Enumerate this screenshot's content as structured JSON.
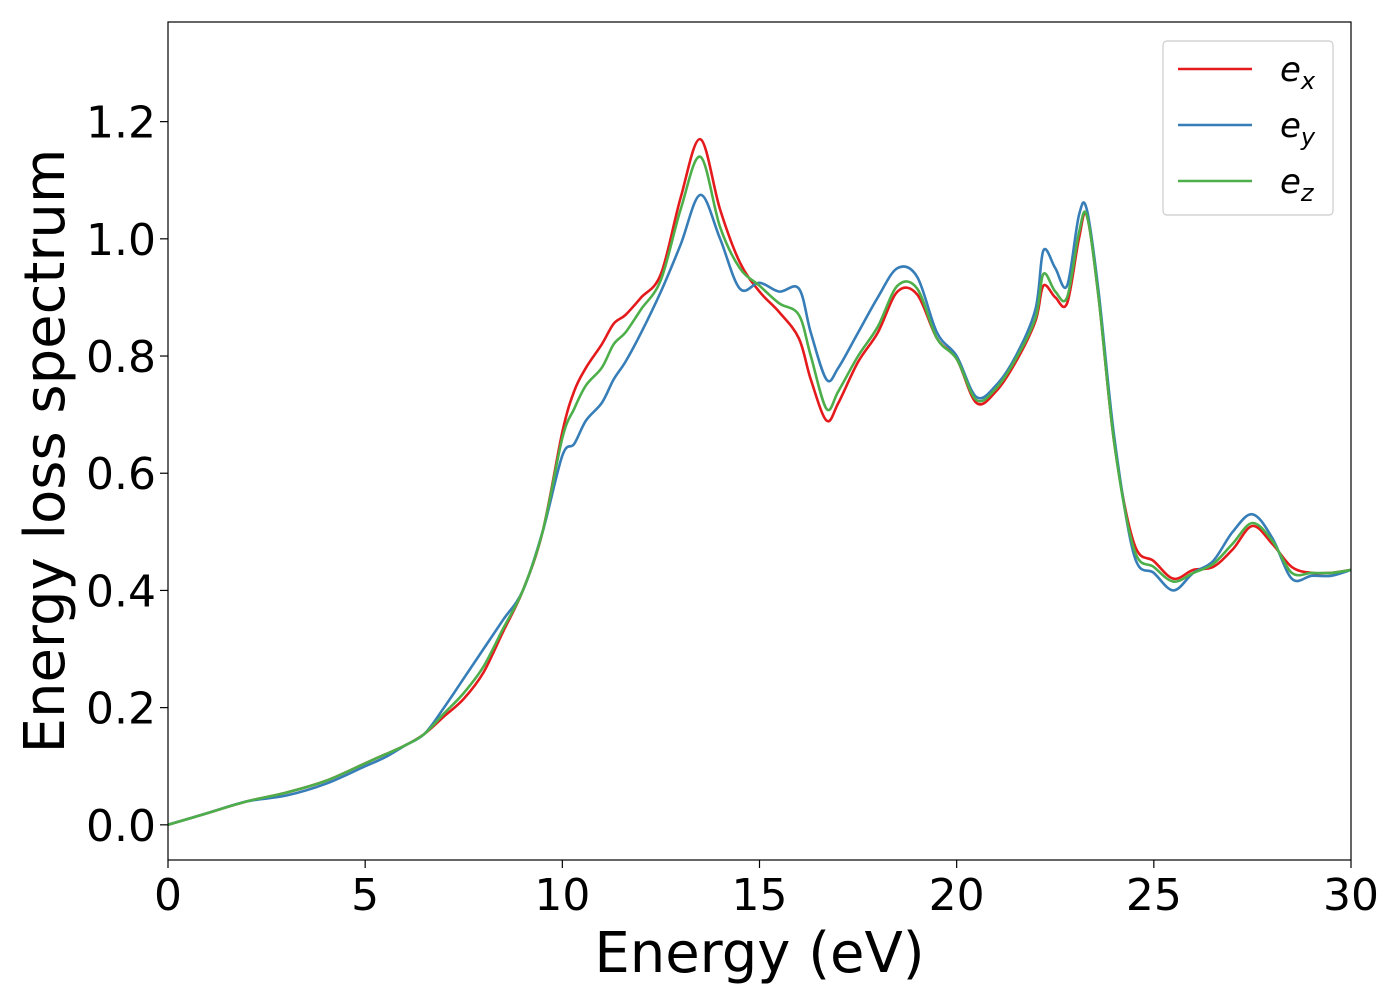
{
  "chart_data": {
    "type": "line",
    "xlabel": "Energy (eV)",
    "ylabel": "Energy loss spectrum",
    "xlim": [
      0,
      30
    ],
    "ylim": [
      -0.06,
      1.37
    ],
    "xticks": [
      0,
      5,
      10,
      15,
      20,
      25,
      30
    ],
    "yticks": [
      0.0,
      0.2,
      0.4,
      0.6,
      0.8,
      1.0,
      1.2
    ],
    "xtick_labels": [
      "0",
      "5",
      "10",
      "15",
      "20",
      "25",
      "30"
    ],
    "ytick_labels": [
      "0.0",
      "0.2",
      "0.4",
      "0.6",
      "0.8",
      "1.0",
      "1.2"
    ],
    "grid": false,
    "legend_position": "top-right",
    "series": [
      {
        "name": "e",
        "subscript": "x",
        "color": "#e41a1c",
        "x": [
          0,
          1,
          2,
          3,
          4,
          5,
          5.5,
          6,
          6.5,
          7,
          7.5,
          8,
          8.5,
          9,
          9.5,
          10,
          10.3,
          10.6,
          11,
          11.3,
          11.6,
          12,
          12.5,
          13,
          13.5,
          14,
          14.5,
          15,
          15.5,
          16,
          16.3,
          16.7,
          17,
          17.5,
          18,
          18.5,
          19,
          19.5,
          20,
          20.5,
          21,
          21.5,
          22,
          22.2,
          22.5,
          22.8,
          23.1,
          23.3,
          23.6,
          24,
          24.5,
          25,
          25.5,
          26,
          26.5,
          27,
          27.5,
          28,
          28.5,
          29,
          29.5,
          30
        ],
        "y": [
          0,
          0.02,
          0.04,
          0.055,
          0.075,
          0.105,
          0.12,
          0.135,
          0.155,
          0.185,
          0.215,
          0.26,
          0.33,
          0.4,
          0.5,
          0.67,
          0.74,
          0.78,
          0.82,
          0.855,
          0.87,
          0.9,
          0.94,
          1.07,
          1.17,
          1.05,
          0.96,
          0.91,
          0.875,
          0.83,
          0.76,
          0.69,
          0.72,
          0.79,
          0.84,
          0.91,
          0.905,
          0.83,
          0.795,
          0.72,
          0.74,
          0.79,
          0.86,
          0.92,
          0.9,
          0.89,
          1.0,
          1.04,
          0.9,
          0.65,
          0.48,
          0.45,
          0.42,
          0.435,
          0.44,
          0.47,
          0.51,
          0.48,
          0.44,
          0.43,
          0.43,
          0.435
        ]
      },
      {
        "name": "e",
        "subscript": "y",
        "color": "#377eb8",
        "x": [
          0,
          1,
          2,
          3,
          4,
          5,
          5.5,
          6,
          6.5,
          7,
          7.5,
          8,
          8.5,
          9,
          9.5,
          10,
          10.3,
          10.6,
          11,
          11.3,
          11.6,
          12,
          12.5,
          13,
          13.5,
          14,
          14.5,
          15,
          15.5,
          16,
          16.3,
          16.7,
          17,
          17.5,
          18,
          18.5,
          19,
          19.5,
          20,
          20.5,
          21,
          21.5,
          22,
          22.2,
          22.5,
          22.8,
          23.1,
          23.3,
          23.6,
          24,
          24.5,
          25,
          25.5,
          26,
          26.5,
          27,
          27.5,
          28,
          28.5,
          29,
          29.5,
          30
        ],
        "y": [
          0,
          0.02,
          0.04,
          0.05,
          0.07,
          0.1,
          0.115,
          0.135,
          0.155,
          0.2,
          0.25,
          0.3,
          0.35,
          0.4,
          0.5,
          0.63,
          0.65,
          0.69,
          0.72,
          0.76,
          0.79,
          0.84,
          0.91,
          0.99,
          1.075,
          1.0,
          0.915,
          0.925,
          0.91,
          0.915,
          0.84,
          0.76,
          0.78,
          0.84,
          0.9,
          0.95,
          0.935,
          0.84,
          0.8,
          0.73,
          0.75,
          0.8,
          0.88,
          0.98,
          0.95,
          0.92,
          1.04,
          1.05,
          0.91,
          0.66,
          0.46,
          0.43,
          0.4,
          0.43,
          0.45,
          0.5,
          0.53,
          0.49,
          0.42,
          0.425,
          0.425,
          0.435
        ]
      },
      {
        "name": "e",
        "subscript": "z",
        "color": "#4daf4a",
        "x": [
          0,
          1,
          2,
          3,
          4,
          5,
          5.5,
          6,
          6.5,
          7,
          7.5,
          8,
          8.5,
          9,
          9.5,
          10,
          10.3,
          10.6,
          11,
          11.3,
          11.6,
          12,
          12.5,
          13,
          13.5,
          14,
          14.5,
          15,
          15.5,
          16,
          16.3,
          16.7,
          17,
          17.5,
          18,
          18.5,
          19,
          19.5,
          20,
          20.5,
          21,
          21.5,
          22,
          22.2,
          22.5,
          22.8,
          23.1,
          23.3,
          23.6,
          24,
          24.5,
          25,
          25.5,
          26,
          26.5,
          27,
          27.5,
          28,
          28.5,
          29,
          29.5,
          30
        ],
        "y": [
          0,
          0.02,
          0.04,
          0.055,
          0.075,
          0.105,
          0.12,
          0.135,
          0.155,
          0.19,
          0.225,
          0.27,
          0.335,
          0.4,
          0.5,
          0.66,
          0.71,
          0.75,
          0.78,
          0.82,
          0.84,
          0.88,
          0.93,
          1.05,
          1.14,
          1.02,
          0.95,
          0.92,
          0.89,
          0.87,
          0.8,
          0.71,
          0.74,
          0.8,
          0.85,
          0.92,
          0.915,
          0.83,
          0.795,
          0.725,
          0.745,
          0.795,
          0.865,
          0.94,
          0.91,
          0.9,
          1.01,
          1.04,
          0.9,
          0.65,
          0.47,
          0.44,
          0.415,
          0.43,
          0.445,
          0.48,
          0.515,
          0.485,
          0.43,
          0.43,
          0.43,
          0.435
        ]
      }
    ]
  }
}
